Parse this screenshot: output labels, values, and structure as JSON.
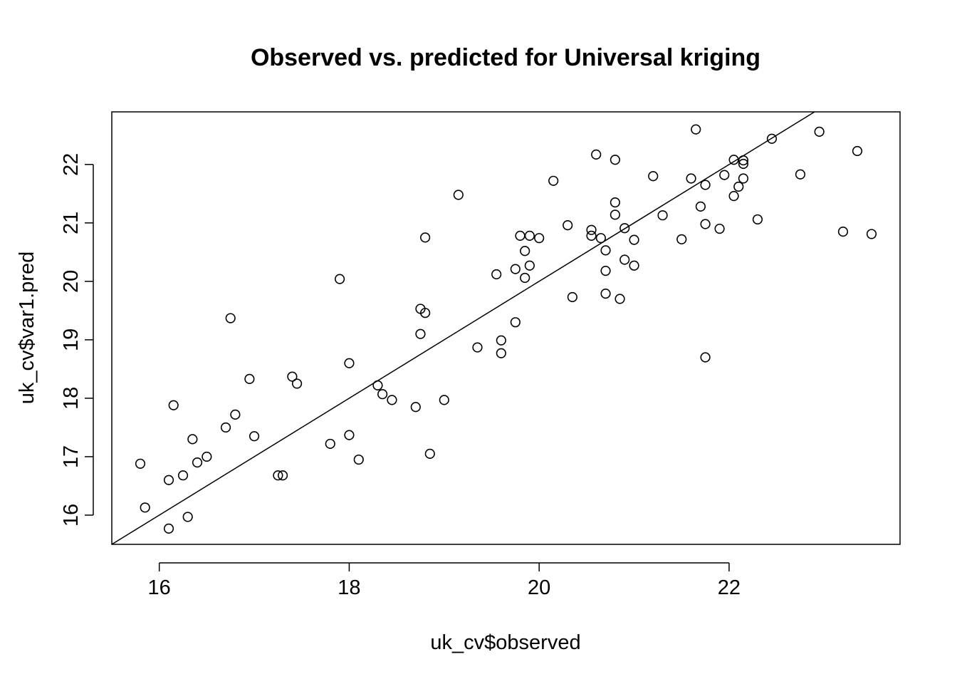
{
  "chart_data": {
    "type": "scatter",
    "title": "Observed vs. predicted for Universal kriging",
    "xlabel": "uk_cv$observed",
    "ylabel": "uk_cv$var1.pred",
    "xlim": [
      15.5,
      23.8
    ],
    "ylim": [
      15.5,
      22.9
    ],
    "xticks": [
      16,
      18,
      20,
      22
    ],
    "yticks": [
      16,
      17,
      18,
      19,
      20,
      21,
      22
    ],
    "reference_line": {
      "type": "abline",
      "intercept": 0,
      "slope": 1
    },
    "grid": false,
    "marker": "open-circle",
    "colors": {
      "points": "#000000",
      "line": "#000000",
      "frame": "#000000"
    },
    "points": [
      {
        "x": 15.8,
        "y": 16.88
      },
      {
        "x": 15.85,
        "y": 16.13
      },
      {
        "x": 16.1,
        "y": 15.77
      },
      {
        "x": 16.1,
        "y": 16.6
      },
      {
        "x": 16.15,
        "y": 17.88
      },
      {
        "x": 16.25,
        "y": 16.68
      },
      {
        "x": 16.3,
        "y": 15.97
      },
      {
        "x": 16.35,
        "y": 17.3
      },
      {
        "x": 16.4,
        "y": 16.9
      },
      {
        "x": 16.5,
        "y": 17.0
      },
      {
        "x": 16.7,
        "y": 17.5
      },
      {
        "x": 16.75,
        "y": 19.37
      },
      {
        "x": 16.8,
        "y": 17.72
      },
      {
        "x": 16.95,
        "y": 18.33
      },
      {
        "x": 17.0,
        "y": 17.35
      },
      {
        "x": 17.25,
        "y": 16.68
      },
      {
        "x": 17.3,
        "y": 16.68
      },
      {
        "x": 17.4,
        "y": 18.37
      },
      {
        "x": 17.45,
        "y": 18.25
      },
      {
        "x": 17.8,
        "y": 17.22
      },
      {
        "x": 17.9,
        "y": 20.04
      },
      {
        "x": 18.0,
        "y": 18.6
      },
      {
        "x": 18.0,
        "y": 17.37
      },
      {
        "x": 18.1,
        "y": 16.95
      },
      {
        "x": 18.3,
        "y": 18.22
      },
      {
        "x": 18.35,
        "y": 18.07
      },
      {
        "x": 18.45,
        "y": 17.97
      },
      {
        "x": 18.7,
        "y": 17.85
      },
      {
        "x": 18.75,
        "y": 19.53
      },
      {
        "x": 18.75,
        "y": 19.1
      },
      {
        "x": 18.8,
        "y": 19.46
      },
      {
        "x": 18.8,
        "y": 20.75
      },
      {
        "x": 18.85,
        "y": 17.05
      },
      {
        "x": 19.0,
        "y": 17.97
      },
      {
        "x": 19.15,
        "y": 21.48
      },
      {
        "x": 19.35,
        "y": 18.87
      },
      {
        "x": 19.55,
        "y": 20.12
      },
      {
        "x": 19.6,
        "y": 18.99
      },
      {
        "x": 19.6,
        "y": 18.77
      },
      {
        "x": 19.75,
        "y": 19.3
      },
      {
        "x": 19.75,
        "y": 20.21
      },
      {
        "x": 19.8,
        "y": 20.78
      },
      {
        "x": 19.85,
        "y": 20.52
      },
      {
        "x": 19.85,
        "y": 20.06
      },
      {
        "x": 19.9,
        "y": 20.78
      },
      {
        "x": 19.9,
        "y": 20.27
      },
      {
        "x": 20.0,
        "y": 20.74
      },
      {
        "x": 20.15,
        "y": 21.72
      },
      {
        "x": 20.3,
        "y": 20.96
      },
      {
        "x": 20.35,
        "y": 19.73
      },
      {
        "x": 20.55,
        "y": 20.88
      },
      {
        "x": 20.55,
        "y": 20.78
      },
      {
        "x": 20.6,
        "y": 22.17
      },
      {
        "x": 20.65,
        "y": 20.74
      },
      {
        "x": 20.7,
        "y": 20.53
      },
      {
        "x": 20.7,
        "y": 20.18
      },
      {
        "x": 20.7,
        "y": 19.79
      },
      {
        "x": 20.8,
        "y": 22.08
      },
      {
        "x": 20.8,
        "y": 21.35
      },
      {
        "x": 20.8,
        "y": 21.14
      },
      {
        "x": 20.85,
        "y": 19.7
      },
      {
        "x": 20.9,
        "y": 20.91
      },
      {
        "x": 20.9,
        "y": 20.37
      },
      {
        "x": 21.0,
        "y": 20.71
      },
      {
        "x": 21.0,
        "y": 20.27
      },
      {
        "x": 21.2,
        "y": 21.8
      },
      {
        "x": 21.3,
        "y": 21.13
      },
      {
        "x": 21.5,
        "y": 20.72
      },
      {
        "x": 21.6,
        "y": 21.76
      },
      {
        "x": 21.65,
        "y": 22.6
      },
      {
        "x": 21.7,
        "y": 21.28
      },
      {
        "x": 21.75,
        "y": 21.65
      },
      {
        "x": 21.75,
        "y": 20.98
      },
      {
        "x": 21.75,
        "y": 18.7
      },
      {
        "x": 21.9,
        "y": 20.9
      },
      {
        "x": 21.95,
        "y": 21.82
      },
      {
        "x": 22.05,
        "y": 22.08
      },
      {
        "x": 22.05,
        "y": 21.46
      },
      {
        "x": 22.1,
        "y": 21.62
      },
      {
        "x": 22.15,
        "y": 22.07
      },
      {
        "x": 22.15,
        "y": 22.01
      },
      {
        "x": 22.15,
        "y": 21.76
      },
      {
        "x": 22.3,
        "y": 21.06
      },
      {
        "x": 22.45,
        "y": 22.44
      },
      {
        "x": 22.75,
        "y": 21.83
      },
      {
        "x": 22.95,
        "y": 22.56
      },
      {
        "x": 23.2,
        "y": 20.85
      },
      {
        "x": 23.35,
        "y": 22.23
      },
      {
        "x": 23.5,
        "y": 20.81
      }
    ]
  }
}
